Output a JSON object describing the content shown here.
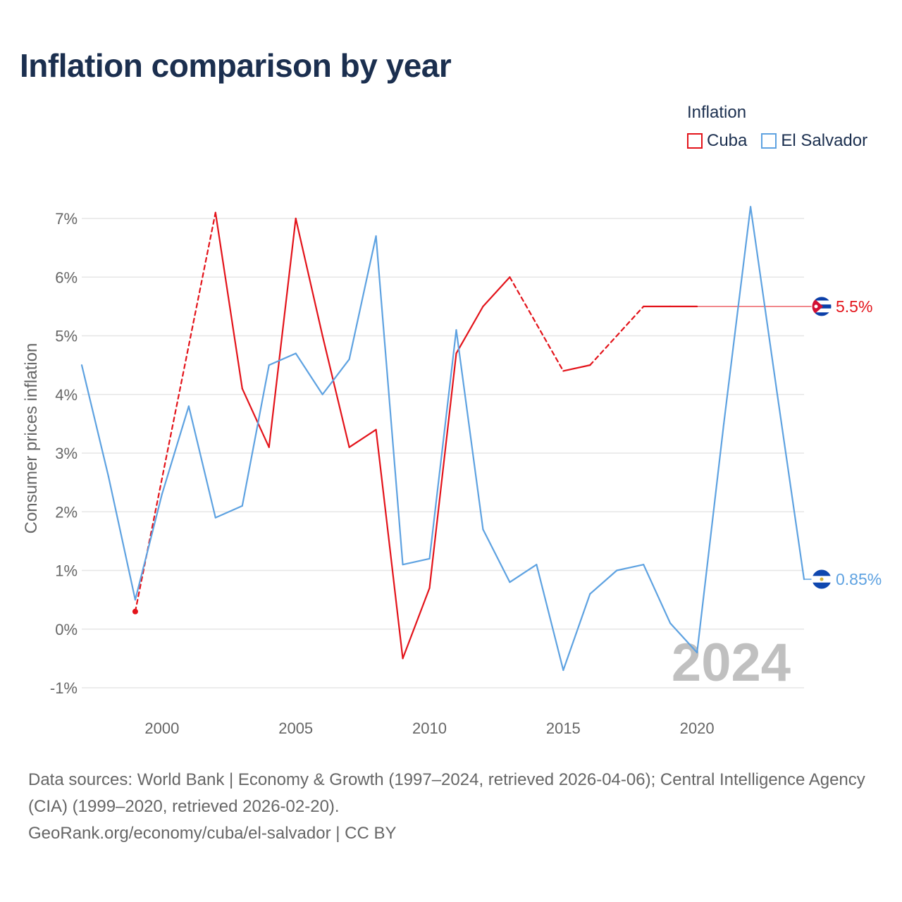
{
  "header": {
    "title": "Inflation comparison by year"
  },
  "legend": {
    "title": "Inflation",
    "items": [
      {
        "label": "Cuba",
        "color": "#e3131a"
      },
      {
        "label": "El Salvador",
        "color": "#5ea2e1"
      }
    ]
  },
  "chart_data": {
    "type": "line",
    "title": "Inflation comparison by year",
    "ylabel": "Consumer prices inflation",
    "xlabel": "",
    "xlim": [
      1997,
      2024
    ],
    "ylim": [
      -1,
      7.2
    ],
    "y_ticks": [
      {
        "v": 7,
        "label": "7%"
      },
      {
        "v": 6,
        "label": "6%"
      },
      {
        "v": 5,
        "label": "5%"
      },
      {
        "v": 4,
        "label": "4%"
      },
      {
        "v": 3,
        "label": "3%"
      },
      {
        "v": 2,
        "label": "2%"
      },
      {
        "v": 1,
        "label": "1%"
      },
      {
        "v": 0,
        "label": "0%"
      },
      {
        "v": -1,
        "label": "-1%"
      }
    ],
    "x_ticks": [
      {
        "v": 2000,
        "label": "2000"
      },
      {
        "v": 2005,
        "label": "2005"
      },
      {
        "v": 2010,
        "label": "2010"
      },
      {
        "v": 2015,
        "label": "2015"
      },
      {
        "v": 2020,
        "label": "2020"
      }
    ],
    "year_label": "2024",
    "series": [
      {
        "name": "Cuba",
        "color": "#e3131a",
        "end_label": "5.5%",
        "end_value": 5.5,
        "points": [
          [
            1999,
            0.3
          ],
          [
            2002,
            7.1
          ],
          [
            2003,
            4.1
          ],
          [
            2004,
            3.1
          ],
          [
            2005,
            7.0
          ],
          [
            2006,
            5.0
          ],
          [
            2007,
            3.1
          ],
          [
            2008,
            3.4
          ],
          [
            2009,
            -0.5
          ],
          [
            2010,
            0.7
          ],
          [
            2011,
            4.7
          ],
          [
            2012,
            5.5
          ],
          [
            2013,
            6.0
          ],
          [
            2015,
            4.4
          ],
          [
            2016,
            4.5
          ],
          [
            2018,
            5.5
          ],
          [
            2019,
            5.5
          ],
          [
            2020,
            5.5
          ]
        ],
        "dashed_gaps": [
          [
            1999,
            2002
          ],
          [
            2013,
            2015
          ],
          [
            2016,
            2018
          ]
        ]
      },
      {
        "name": "El Salvador",
        "color": "#5ea2e1",
        "end_label": "0.85%",
        "end_value": 0.85,
        "points": [
          [
            1997,
            4.5
          ],
          [
            1998,
            2.6
          ],
          [
            1999,
            0.5
          ],
          [
            2000,
            2.3
          ],
          [
            2001,
            3.8
          ],
          [
            2002,
            1.9
          ],
          [
            2003,
            2.1
          ],
          [
            2004,
            4.5
          ],
          [
            2005,
            4.7
          ],
          [
            2006,
            4.0
          ],
          [
            2007,
            4.6
          ],
          [
            2008,
            6.7
          ],
          [
            2009,
            1.1
          ],
          [
            2010,
            1.2
          ],
          [
            2011,
            5.1
          ],
          [
            2012,
            1.7
          ],
          [
            2013,
            0.8
          ],
          [
            2014,
            1.1
          ],
          [
            2015,
            -0.7
          ],
          [
            2016,
            0.6
          ],
          [
            2017,
            1.0
          ],
          [
            2018,
            1.1
          ],
          [
            2019,
            0.1
          ],
          [
            2020,
            -0.4
          ],
          [
            2021,
            3.5
          ],
          [
            2022,
            7.2
          ],
          [
            2023,
            4.0
          ],
          [
            2024,
            0.85
          ]
        ]
      }
    ]
  },
  "footer": {
    "sources": "Data sources: World Bank | Economy & Growth (1997–2024, retrieved 2026-04-06); Central Intelligence Agency (CIA) (1999–2020, retrieved 2026-02-20).",
    "credit": "GeoRank.org/economy/cuba/el-salvador | CC BY"
  }
}
